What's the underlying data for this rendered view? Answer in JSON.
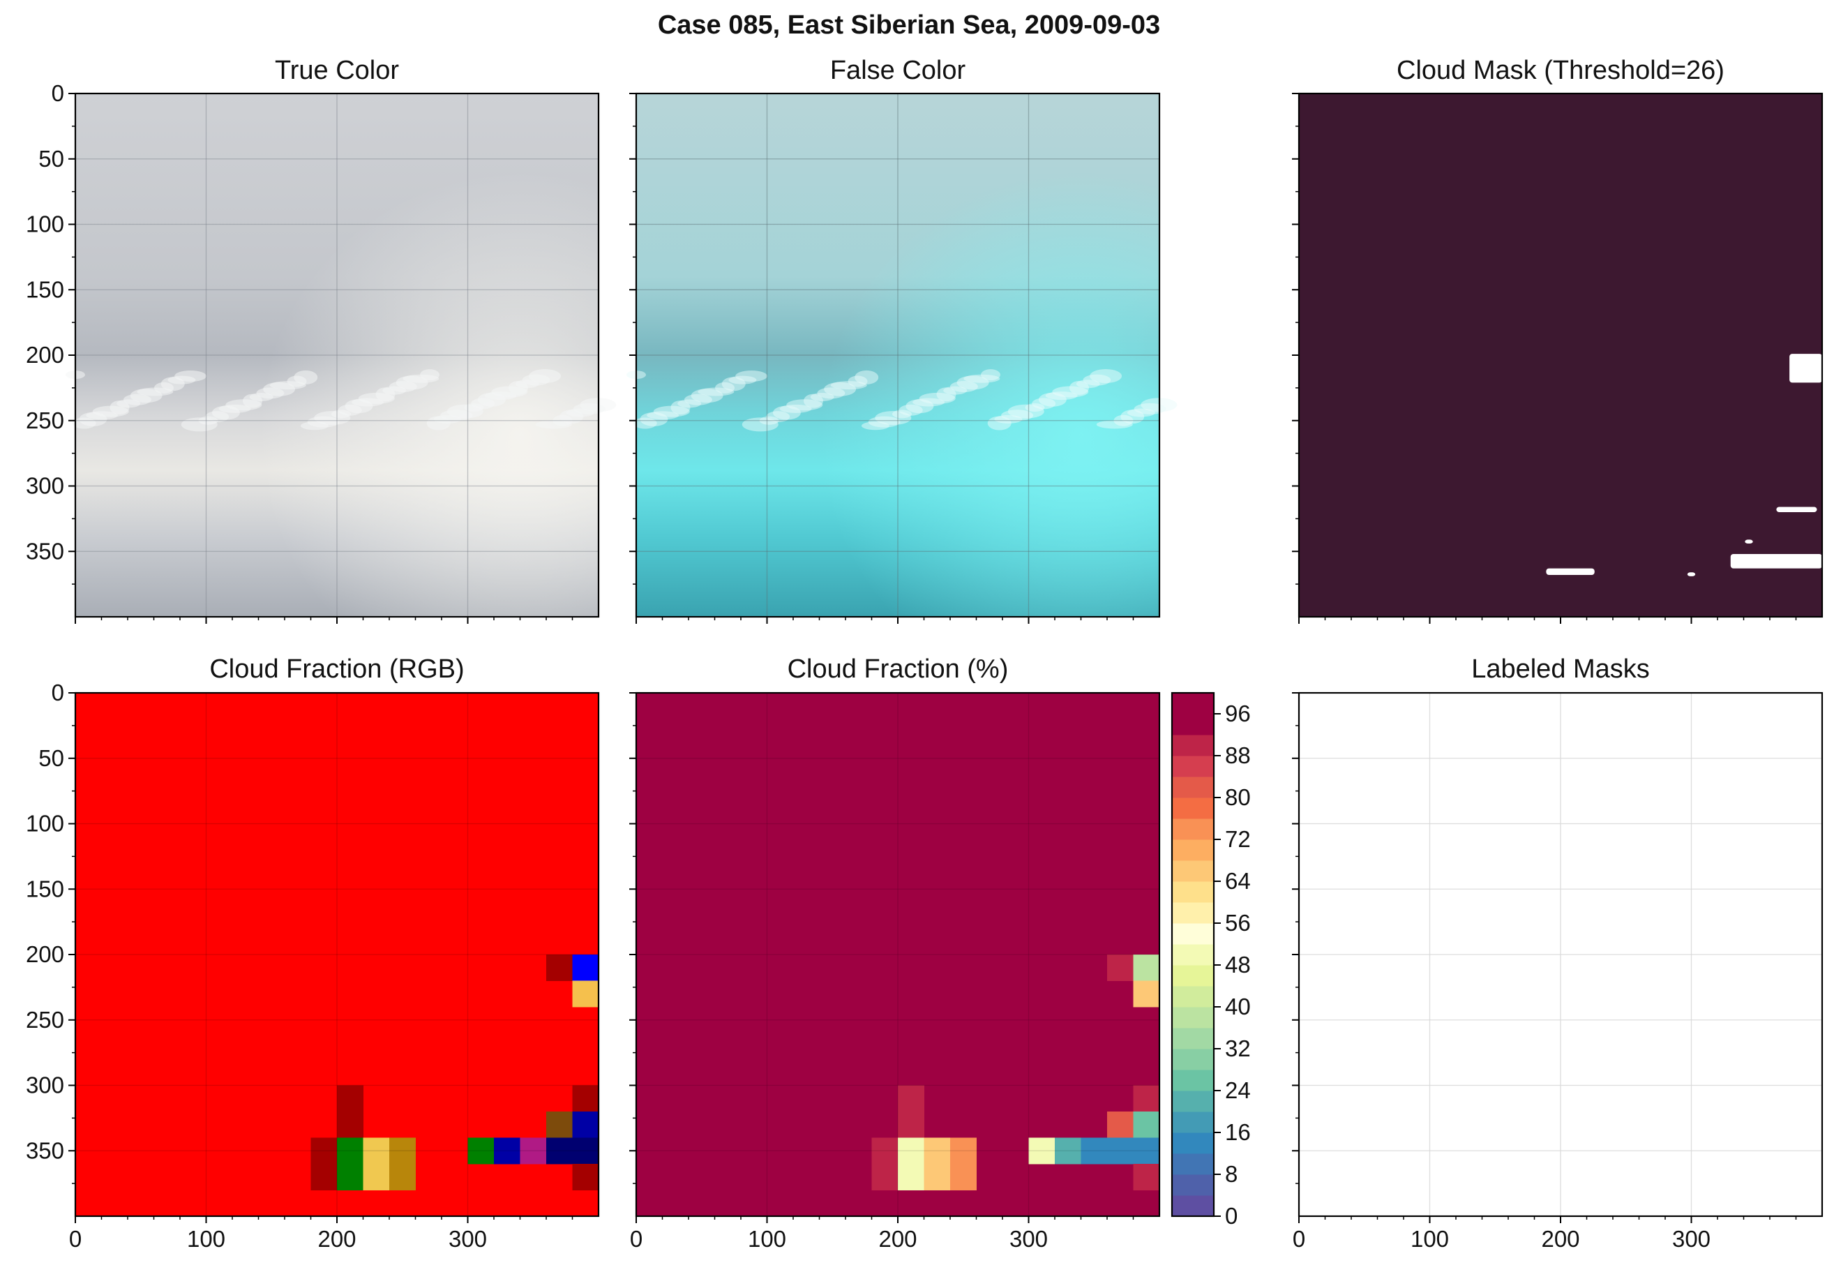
{
  "figure_title": "Case 085, East Siberian Sea, 2009-09-03",
  "panels": {
    "true_color": {
      "title": "True Color"
    },
    "false_color": {
      "title": "False Color"
    },
    "cloud_mask": {
      "title": "Cloud Mask (Threshold=26)"
    },
    "cf_rgb": {
      "title": "Cloud Fraction (RGB)"
    },
    "cf_pct": {
      "title": "Cloud Fraction (%)"
    },
    "labeled": {
      "title": "Labeled Masks"
    }
  },
  "colors": {
    "mask_background": "#3d1830",
    "mask_cloud": "#ffffff",
    "cf_rgb_background": "#ff0000",
    "cf_pct_background": "#9e0142"
  },
  "chart_data": [
    {
      "type": "image",
      "id": "true_color",
      "title": "True Color",
      "xlim": [
        0,
        400
      ],
      "ylim": [
        400,
        0
      ],
      "yticks": [
        0,
        50,
        100,
        150,
        200,
        250,
        300,
        350
      ],
      "grid": true,
      "description_colors": [
        "#c8cbd0",
        "#a9aeb6",
        "#f2f1ec"
      ]
    },
    {
      "type": "image",
      "id": "false_color",
      "title": "False Color",
      "xlim": [
        0,
        400
      ],
      "ylim": [
        400,
        0
      ],
      "grid": true,
      "description_colors": [
        "#b4d3d6",
        "#6fb9c2",
        "#5fe3e6"
      ]
    },
    {
      "type": "heatmap",
      "id": "cloud_mask",
      "title": "Cloud Mask (Threshold=26)",
      "xlim": [
        0,
        400
      ],
      "ylim": [
        400,
        0
      ],
      "cloud_regions": [
        {
          "x0": 375,
          "x1": 400,
          "y0": 199,
          "y1": 221
        },
        {
          "x0": 330,
          "x1": 400,
          "y0": 352,
          "y1": 363
        },
        {
          "x0": 365,
          "x1": 396,
          "y0": 316,
          "y1": 320
        },
        {
          "x0": 189,
          "x1": 226,
          "y0": 363,
          "y1": 368
        },
        {
          "x0": 297,
          "x1": 303,
          "y0": 366,
          "y1": 369
        },
        {
          "x0": 341,
          "x1": 347,
          "y0": 341,
          "y1": 344
        }
      ]
    },
    {
      "type": "heatmap",
      "id": "cf_rgb",
      "title": "Cloud Fraction (RGB)",
      "xlim": [
        0,
        400
      ],
      "ylim": [
        400,
        0
      ],
      "xticks": [
        0,
        100,
        200,
        300
      ],
      "yticks": [
        0,
        50,
        100,
        150,
        200,
        250,
        300,
        350
      ],
      "cell_size": 20,
      "cells": [
        {
          "x": 360,
          "y": 200,
          "color": "#a40000"
        },
        {
          "x": 380,
          "y": 200,
          "color": "#0000ff"
        },
        {
          "x": 380,
          "y": 220,
          "color": "#f5c04d"
        },
        {
          "x": 200,
          "y": 300,
          "color": "#a40000"
        },
        {
          "x": 380,
          "y": 300,
          "color": "#a40000"
        },
        {
          "x": 200,
          "y": 320,
          "color": "#a40000"
        },
        {
          "x": 360,
          "y": 320,
          "color": "#7d4b0c"
        },
        {
          "x": 380,
          "y": 320,
          "color": "#0000a5"
        },
        {
          "x": 180,
          "y": 340,
          "color": "#a40000"
        },
        {
          "x": 200,
          "y": 340,
          "color": "#008000"
        },
        {
          "x": 220,
          "y": 340,
          "color": "#f0c850"
        },
        {
          "x": 240,
          "y": 340,
          "color": "#b8860b"
        },
        {
          "x": 300,
          "y": 340,
          "color": "#008000"
        },
        {
          "x": 320,
          "y": 340,
          "color": "#0000a5"
        },
        {
          "x": 340,
          "y": 340,
          "color": "#b01a85"
        },
        {
          "x": 360,
          "y": 340,
          "color": "#000070"
        },
        {
          "x": 380,
          "y": 340,
          "color": "#000070"
        },
        {
          "x": 180,
          "y": 360,
          "color": "#a40000"
        },
        {
          "x": 200,
          "y": 360,
          "color": "#008000"
        },
        {
          "x": 220,
          "y": 360,
          "color": "#f0c850"
        },
        {
          "x": 240,
          "y": 360,
          "color": "#b8860b"
        },
        {
          "x": 380,
          "y": 360,
          "color": "#a40000"
        }
      ]
    },
    {
      "type": "heatmap",
      "id": "cf_pct",
      "title": "Cloud Fraction (%)",
      "xlim": [
        0,
        400
      ],
      "ylim": [
        400,
        0
      ],
      "xticks": [
        0,
        100,
        200,
        300
      ],
      "cell_size": 20,
      "default_value": 100,
      "cells": [
        {
          "x": 360,
          "y": 200,
          "value": 90
        },
        {
          "x": 380,
          "y": 200,
          "value": 36
        },
        {
          "x": 380,
          "y": 220,
          "value": 64
        },
        {
          "x": 200,
          "y": 300,
          "value": 90
        },
        {
          "x": 380,
          "y": 300,
          "value": 90
        },
        {
          "x": 200,
          "y": 320,
          "value": 90
        },
        {
          "x": 360,
          "y": 320,
          "value": 80
        },
        {
          "x": 380,
          "y": 320,
          "value": 24
        },
        {
          "x": 180,
          "y": 340,
          "value": 90
        },
        {
          "x": 200,
          "y": 340,
          "value": 48
        },
        {
          "x": 220,
          "y": 340,
          "value": 64
        },
        {
          "x": 240,
          "y": 340,
          "value": 72
        },
        {
          "x": 300,
          "y": 340,
          "value": 48
        },
        {
          "x": 320,
          "y": 340,
          "value": 20
        },
        {
          "x": 340,
          "y": 340,
          "value": 12
        },
        {
          "x": 360,
          "y": 340,
          "value": 14
        },
        {
          "x": 380,
          "y": 340,
          "value": 14
        },
        {
          "x": 180,
          "y": 360,
          "value": 90
        },
        {
          "x": 200,
          "y": 360,
          "value": 48
        },
        {
          "x": 220,
          "y": 360,
          "value": 64
        },
        {
          "x": 240,
          "y": 360,
          "value": 72
        },
        {
          "x": 380,
          "y": 360,
          "value": 90
        }
      ],
      "colorbar": {
        "range": [
          0,
          100
        ],
        "step": 4,
        "ticks": [
          0,
          8,
          16,
          24,
          32,
          40,
          48,
          56,
          64,
          72,
          80,
          88,
          96
        ],
        "colors": [
          "#5e4fa2",
          "#4f61aa",
          "#4175b4",
          "#3288bd",
          "#439bb5",
          "#56b0ad",
          "#6bc4a4",
          "#88cfa4",
          "#a2d9a4",
          "#bbe3a1",
          "#d1ec9c",
          "#e6f598",
          "#f3fab5",
          "#fffed9",
          "#fff0ab",
          "#fee08b",
          "#fdc876",
          "#fdae61",
          "#f99155",
          "#f46d43",
          "#e45a49",
          "#d53e4f",
          "#be2448",
          "#9e0142",
          "#9e0142"
        ]
      }
    },
    {
      "type": "image",
      "id": "labeled",
      "title": "Labeled Masks",
      "xlim": [
        0,
        400
      ],
      "ylim": [
        400,
        0
      ],
      "xticks": [
        0,
        100,
        200,
        300
      ],
      "grid": true
    }
  ]
}
